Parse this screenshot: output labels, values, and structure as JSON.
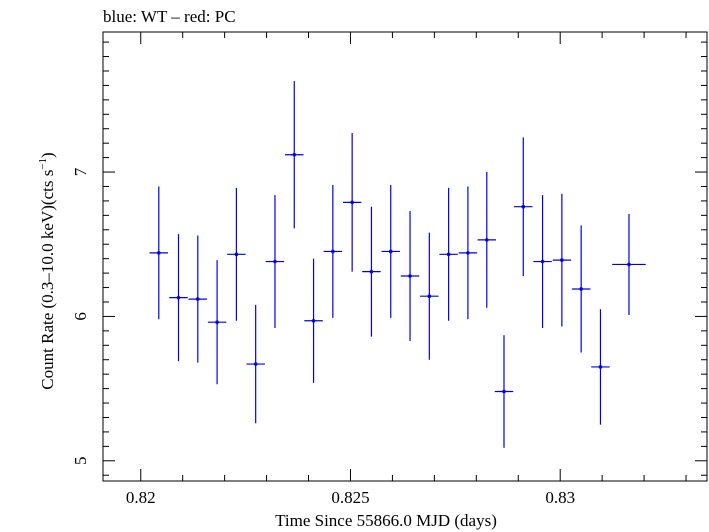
{
  "chart_data": {
    "type": "scatter",
    "title": "blue: WT – red: PC",
    "xlabel": "Time Since 55866.0 MJD (days)",
    "ylabel_main": "Count Rate (0.3–10.0 keV)(cts s",
    "ylabel_sup": "−1",
    "ylabel_end": ")",
    "xlim": [
      0.8191,
      0.8335
    ],
    "ylim": [
      4.86,
      7.97
    ],
    "x_ticks": [
      0.82,
      0.825,
      0.83
    ],
    "x_tick_labels": [
      "0.82",
      "0.825",
      "0.83"
    ],
    "y_ticks": [
      5,
      6,
      7
    ],
    "y_tick_labels": [
      "5",
      "6",
      "7"
    ],
    "series": [
      {
        "color": "#0000ee",
        "points": [
          {
            "x": 0.82043,
            "y": 6.44,
            "xerr": 0.00022,
            "yerr": 0.46
          },
          {
            "x": 0.8209,
            "y": 6.13,
            "xerr": 0.00022,
            "yerr": 0.44
          },
          {
            "x": 0.82136,
            "y": 6.12,
            "xerr": 0.00022,
            "yerr": 0.44
          },
          {
            "x": 0.82182,
            "y": 5.96,
            "xerr": 0.00022,
            "yerr": 0.43
          },
          {
            "x": 0.82228,
            "y": 6.43,
            "xerr": 0.00022,
            "yerr": 0.46
          },
          {
            "x": 0.82274,
            "y": 5.67,
            "xerr": 0.00022,
            "yerr": 0.41
          },
          {
            "x": 0.8232,
            "y": 6.38,
            "xerr": 0.00022,
            "yerr": 0.46
          },
          {
            "x": 0.82366,
            "y": 7.12,
            "xerr": 0.00022,
            "yerr": 0.51
          },
          {
            "x": 0.82412,
            "y": 5.97,
            "xerr": 0.00022,
            "yerr": 0.43
          },
          {
            "x": 0.82458,
            "y": 6.45,
            "xerr": 0.00022,
            "yerr": 0.46
          },
          {
            "x": 0.82504,
            "y": 6.79,
            "xerr": 0.00022,
            "yerr": 0.48
          },
          {
            "x": 0.8255,
            "y": 6.31,
            "xerr": 0.00022,
            "yerr": 0.45
          },
          {
            "x": 0.82596,
            "y": 6.45,
            "xerr": 0.00022,
            "yerr": 0.46
          },
          {
            "x": 0.82642,
            "y": 6.28,
            "xerr": 0.00022,
            "yerr": 0.45
          },
          {
            "x": 0.82688,
            "y": 6.14,
            "xerr": 0.00022,
            "yerr": 0.44
          },
          {
            "x": 0.82734,
            "y": 6.43,
            "xerr": 0.00022,
            "yerr": 0.46
          },
          {
            "x": 0.8278,
            "y": 6.44,
            "xerr": 0.00022,
            "yerr": 0.46
          },
          {
            "x": 0.82825,
            "y": 6.53,
            "xerr": 0.00022,
            "yerr": 0.47
          },
          {
            "x": 0.82866,
            "y": 5.48,
            "xerr": 0.00022,
            "yerr": 0.39
          },
          {
            "x": 0.82912,
            "y": 6.76,
            "xerr": 0.00022,
            "yerr": 0.48
          },
          {
            "x": 0.82958,
            "y": 6.38,
            "xerr": 0.00022,
            "yerr": 0.46
          },
          {
            "x": 0.83004,
            "y": 6.39,
            "xerr": 0.00022,
            "yerr": 0.46
          },
          {
            "x": 0.8305,
            "y": 6.19,
            "xerr": 0.00022,
            "yerr": 0.44
          },
          {
            "x": 0.83096,
            "y": 5.65,
            "xerr": 0.00022,
            "yerr": 0.4
          },
          {
            "x": 0.83164,
            "y": 6.36,
            "xerr": 0.0004,
            "yerr": 0.35
          }
        ]
      }
    ],
    "grid": false,
    "legend": "none"
  }
}
